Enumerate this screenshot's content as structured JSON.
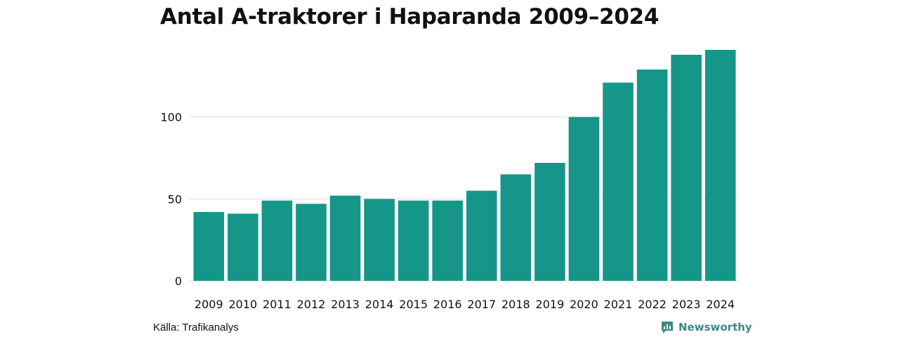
{
  "title": "Antal A-traktorer i Haparanda 2009–2024",
  "source": "Källa: Trafikanalys",
  "brand": {
    "name": "Newsworthy",
    "icon": "newsworthy-logo-icon",
    "color": "#3a8a82"
  },
  "colors": {
    "bar": "#159688",
    "grid": "#dddddd",
    "axis_text": "#111111"
  },
  "chart_data": {
    "type": "bar",
    "title": "Antal A-traktorer i Haparanda 2009–2024",
    "xlabel": "",
    "ylabel": "",
    "categories": [
      "2009",
      "2010",
      "2011",
      "2012",
      "2013",
      "2014",
      "2015",
      "2016",
      "2017",
      "2018",
      "2019",
      "2020",
      "2021",
      "2022",
      "2023",
      "2024"
    ],
    "values": [
      42,
      41,
      49,
      47,
      52,
      50,
      49,
      49,
      55,
      65,
      72,
      100,
      121,
      129,
      138,
      141
    ],
    "ylim": [
      0,
      141
    ],
    "yticks": [
      0,
      50,
      100
    ],
    "grid": true,
    "legend": "none"
  }
}
